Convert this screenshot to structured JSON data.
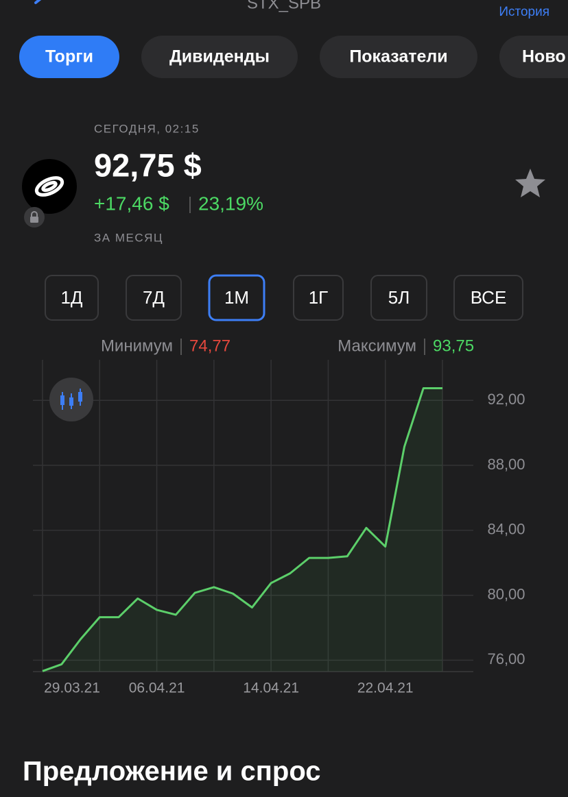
{
  "header": {
    "title": "STX_SPB",
    "history": "История"
  },
  "tabs": [
    "Торги",
    "Дивиденды",
    "Показатели",
    "Ново"
  ],
  "quote": {
    "time": "СЕГОДНЯ, 02:15",
    "price": "92,75 $",
    "change": "+17,46 $",
    "change_pct": "23,19%",
    "period_note": "ЗА МЕСЯЦ"
  },
  "periods": [
    "1Д",
    "7Д",
    "1М",
    "1Г",
    "5Л",
    "ВСЕ"
  ],
  "range": {
    "min_label": "Минимум",
    "min_value": "74,77",
    "max_label": "Максимум",
    "max_value": "93,75"
  },
  "chart_data": {
    "type": "line",
    "categories": [
      "29.03.21",
      null,
      null,
      null,
      null,
      null,
      "06.04.21",
      null,
      null,
      null,
      null,
      null,
      "14.04.21",
      null,
      null,
      null,
      null,
      null,
      "22.04.21",
      null,
      null,
      null
    ],
    "series": [
      {
        "color": "#5ccf6a",
        "values": [
          75.33,
          75.75,
          77.3,
          78.65,
          78.65,
          79.8,
          79.1,
          78.8,
          80.15,
          80.5,
          80.1,
          79.25,
          80.75,
          81.35,
          82.3,
          82.3,
          82.4,
          84.15,
          83.0,
          89.15,
          92.75,
          92.75
        ]
      }
    ],
    "ylim": [
      75.3,
      94.5
    ],
    "yticks": [
      {
        "value": 76,
        "label": "76,00"
      },
      {
        "value": 80,
        "label": "80,00"
      },
      {
        "value": 84,
        "label": "84,00"
      },
      {
        "value": 88,
        "label": "88,00"
      },
      {
        "value": 92,
        "label": "92,00"
      }
    ],
    "grid": true
  },
  "section_title": "Предложение и спрос"
}
